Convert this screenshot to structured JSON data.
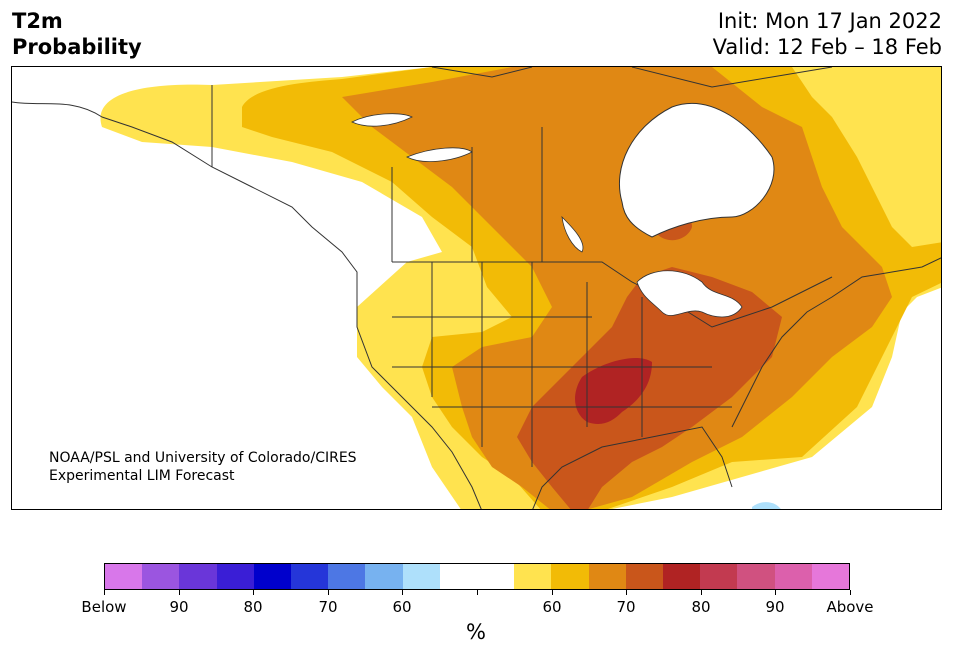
{
  "header": {
    "title_line1": "T2m",
    "title_line2": "Probability",
    "init_text": "Init: Mon 17 Jan 2022",
    "valid_text": "Valid: 12 Feb – 18 Feb"
  },
  "map": {
    "credit_line1": "NOAA/PSL and University of Colorado/CIRES",
    "credit_line2": "Experimental LIM Forecast"
  },
  "colorbar": {
    "colors": [
      "#d877ea",
      "#9b55e0",
      "#6a36d9",
      "#3a1ed6",
      "#0000cc",
      "#2536d9",
      "#4d77e4",
      "#77b2f0",
      "#aee0fb",
      "#ffffff",
      "#ffffff",
      "#ffe34f",
      "#f2bb06",
      "#e08814",
      "#c9561b",
      "#b02323",
      "#c23a50",
      "#d05180",
      "#dc60ac",
      "#e677da"
    ],
    "labels": [
      "Below",
      "90",
      "80",
      "70",
      "60",
      "",
      "60",
      "70",
      "80",
      "90",
      "Above"
    ],
    "unit": "%"
  }
}
